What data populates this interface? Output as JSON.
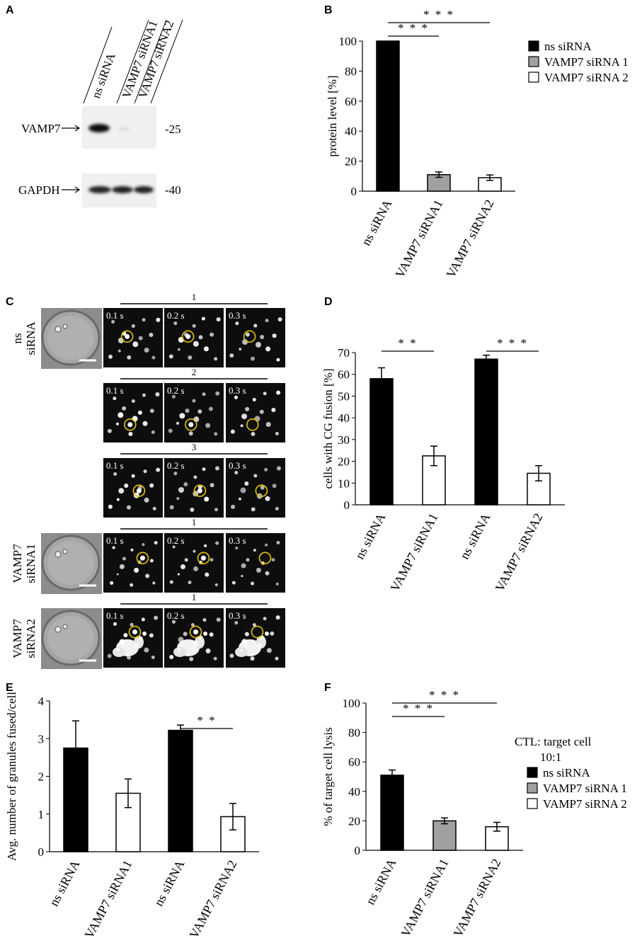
{
  "panel_letters": [
    "A",
    "B",
    "C",
    "D",
    "E",
    "F"
  ],
  "blot": {
    "lanes": [
      "ns siRNA",
      "VAMP7 siRNA1",
      "VAMP7 siRNA2"
    ],
    "rows": [
      {
        "protein": "VAMP7",
        "marker": "-25",
        "band_intensity": [
          1.0,
          0.03,
          0.02
        ]
      },
      {
        "protein": "GAPDH",
        "marker": "-40",
        "band_intensity": [
          1.0,
          1.0,
          1.0
        ]
      }
    ]
  },
  "micro": {
    "rows": [
      {
        "condition": "ns siRNA",
        "event": "1",
        "times": [
          "0.1 s",
          "0.2 s",
          "0.3 s"
        ]
      },
      {
        "condition": "",
        "event": "2",
        "times": [
          "0.1 s",
          "0.2 s",
          "0.3 s"
        ]
      },
      {
        "condition": "",
        "event": "3",
        "times": [
          "0.1 s",
          "0.2 s",
          "0.3 s"
        ]
      },
      {
        "condition": "VAMP7 siRNA1",
        "event": "1",
        "times": [
          "0.1 s",
          "0.2 s",
          "0.3 s"
        ]
      },
      {
        "condition": "VAMP7 siRNA2",
        "event": "1",
        "times": [
          "0.1 s",
          "0.2 s",
          "0.3 s"
        ]
      }
    ],
    "circle_color": "#e8c400"
  },
  "chart_data": [
    {
      "panel": "B",
      "type": "bar",
      "categories": [
        "ns siRNA",
        "VAMP7 siRNA1",
        "VAMP7 siRNA2"
      ],
      "values": [
        100,
        11,
        9
      ],
      "errors": [
        0,
        1.8,
        1.8
      ],
      "colors": [
        "#000000",
        "#a0a0a0",
        "#ffffff"
      ],
      "ylabel": "protein level [%]",
      "xlabel": "",
      "ylim": [
        0,
        100
      ],
      "yticks": [
        0,
        20,
        40,
        60,
        80,
        100
      ],
      "legend": {
        "entries": [
          "ns siRNA",
          "VAMP7 siRNA 1",
          "VAMP7 siRNA 2"
        ],
        "position": "top-right"
      },
      "significance": [
        {
          "from": 0,
          "to": 1,
          "label": "* * *"
        },
        {
          "from": 0,
          "to": 2,
          "label": "* * *"
        }
      ]
    },
    {
      "panel": "D",
      "type": "bar",
      "categories": [
        "ns siRNA",
        "VAMP7 siRNA1",
        "ns siRNA",
        "VAMP7 siRNA2"
      ],
      "values": [
        58,
        22.5,
        67,
        14.5
      ],
      "errors": [
        5,
        4.5,
        1.8,
        3.5
      ],
      "colors": [
        "#000000",
        "#ffffff",
        "#000000",
        "#ffffff"
      ],
      "ylabel": "cells with CG fusion [%]",
      "xlabel": "",
      "ylim": [
        0,
        70
      ],
      "yticks": [
        0,
        10,
        20,
        30,
        40,
        50,
        60,
        70
      ],
      "significance": [
        {
          "from": 0,
          "to": 1,
          "label": "* *"
        },
        {
          "from": 2,
          "to": 3,
          "label": "* * *"
        }
      ]
    },
    {
      "panel": "E",
      "type": "bar",
      "categories": [
        "ns siRNA",
        "VAMP7 siRNA1",
        "ns siRNA",
        "VAMP7 siRNA2"
      ],
      "values": [
        2.75,
        1.55,
        3.22,
        0.93
      ],
      "errors": [
        0.72,
        0.38,
        0.14,
        0.35
      ],
      "colors": [
        "#000000",
        "#ffffff",
        "#000000",
        "#ffffff"
      ],
      "ylabel": "Avg. number of granules fused/cell",
      "xlabel": "",
      "ylim": [
        0,
        4
      ],
      "yticks": [
        0,
        1,
        2,
        3,
        4
      ],
      "significance": [
        {
          "from": 2,
          "to": 3,
          "label": "* *"
        }
      ]
    },
    {
      "panel": "F",
      "type": "bar",
      "categories": [
        "ns siRNA",
        "VAMP7 siRNA1",
        "VAMP7 siRNA2"
      ],
      "values": [
        51,
        20,
        16
      ],
      "errors": [
        3.5,
        2.0,
        3.0
      ],
      "colors": [
        "#000000",
        "#a0a0a0",
        "#ffffff"
      ],
      "ylabel": "% of target cell lysis",
      "xlabel": "",
      "ylim": [
        0,
        100
      ],
      "yticks": [
        0,
        20,
        40,
        60,
        80,
        100
      ],
      "legend": {
        "title": "CTL: target cell",
        "subtitle": "10:1",
        "entries": [
          "ns siRNA",
          "VAMP7 siRNA 1",
          "VAMP7 siRNA 2"
        ],
        "position": "top-right"
      },
      "significance": [
        {
          "from": 0,
          "to": 1,
          "label": "* * *"
        },
        {
          "from": 0,
          "to": 2,
          "label": "* * *"
        }
      ]
    }
  ]
}
